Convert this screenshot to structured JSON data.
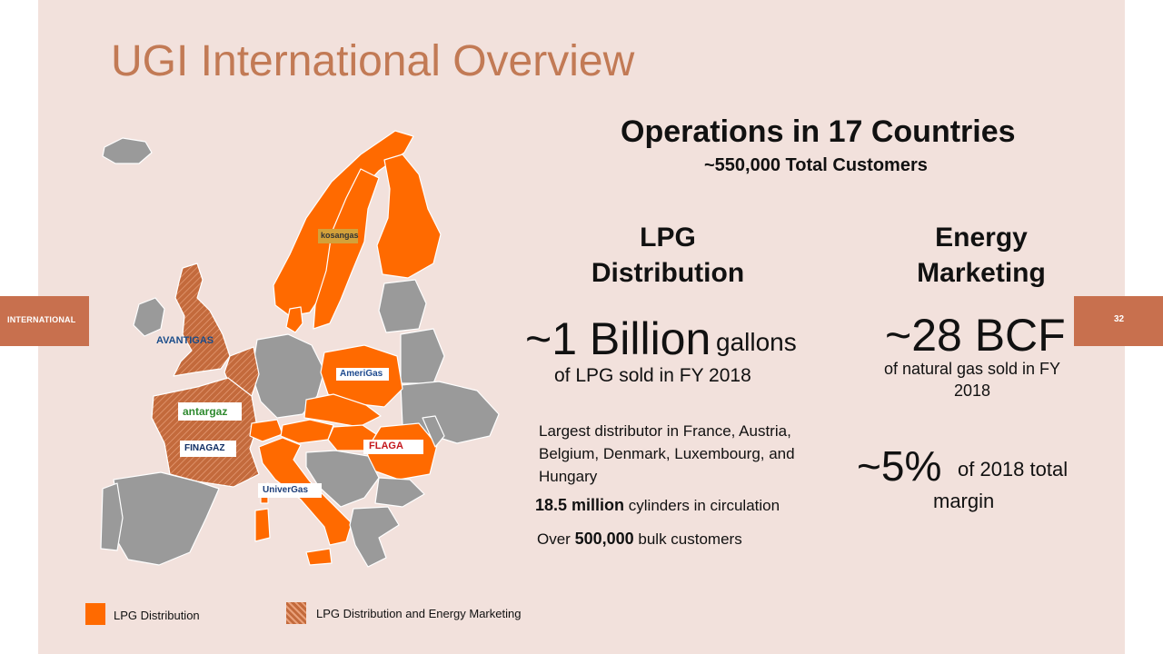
{
  "header": {
    "title": "UGI International Overview",
    "section_tab": "INTERNATIONAL",
    "page_number": "32"
  },
  "operations": {
    "headline": "Operations in 17 Countries",
    "customers": "~550,000 Total Customers"
  },
  "lpg": {
    "heading_line1": "LPG",
    "heading_line2": "Distribution",
    "volume_big": "~1 Billion",
    "volume_unit": "gallons",
    "volume_caption": "of LPG sold in FY 2018",
    "facts_line1": "Largest distributor in France, Austria,",
    "facts_line2": "Belgium, Denmark, Luxembourg, and",
    "facts_line3": "Hungary",
    "cylinders_bold": "18.5 million",
    "cylinders_rest": "cylinders in circulation",
    "bulk_prefix": "Over",
    "bulk_bold": "500,000",
    "bulk_rest": "bulk customers"
  },
  "energy": {
    "heading_line1": "Energy",
    "heading_line2": "Marketing",
    "volume_big": "~28 BCF",
    "volume_caption_line1": "of natural gas sold in FY",
    "volume_caption_line2": "2018",
    "margin_big": "~5%",
    "margin_caption_line1": "of 2018 total",
    "margin_caption_line2": "margin"
  },
  "map_logos": {
    "kosan": "kosangas",
    "avanti": "AVANTIGAS",
    "amerigas": "AmeriGas",
    "antargaz": "antargaz",
    "finagaz": "FINAGAZ",
    "flaga": "FLAGA",
    "univergas": "UniverGas"
  },
  "legend": {
    "lpg_label": "LPG Distribution",
    "lpg_energy_label": "LPG Distribution and Energy Marketing"
  },
  "colors": {
    "orange": "#ff6a00",
    "hatched": "#c36a3c",
    "grey": "#9a9a9a",
    "title": "#c27a55",
    "tab": "#c8704e",
    "background": "#f2e1dc"
  }
}
